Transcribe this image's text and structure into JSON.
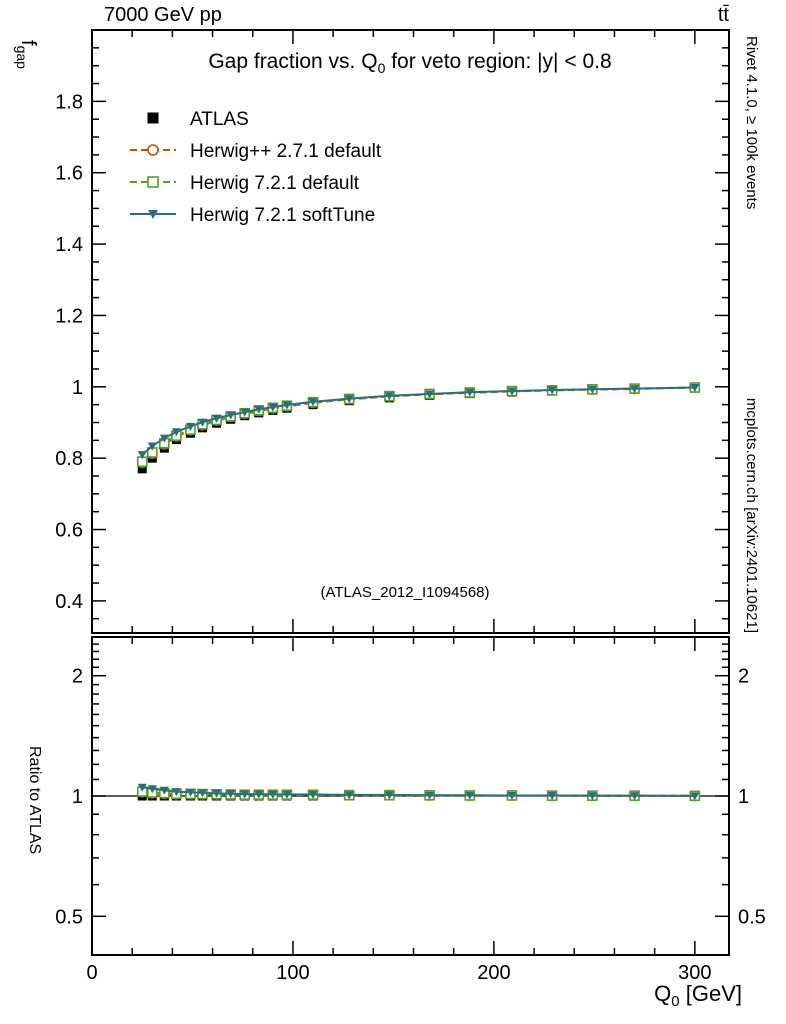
{
  "page": {
    "top_left_label": "7000 GeV pp",
    "top_right_label": "tt̄",
    "right_label_top": "Rivet 4.1.0, ≥ 100k events",
    "right_label_bottom": "mcplots.cern.ch [arXiv:2401.10621]",
    "watermark": "(ATLAS_2012_I1094568)"
  },
  "chart_data": {
    "type": "line",
    "title": {
      "pre": "Gap fraction vs. Q",
      "sub": "0",
      "post": " for veto region: |y| < 0.8"
    },
    "xlabel": {
      "pre": "Q",
      "sub": "0",
      "post": " [GeV]"
    },
    "ylabel": {
      "pre": "f",
      "sub": "gap"
    },
    "ratio_label": "Ratio to ATLAS",
    "legend_position": "top-left",
    "x_axis": {
      "lim": [
        0,
        317
      ],
      "major_ticks": [
        0,
        100,
        200,
        300
      ],
      "minor_step": 20
    },
    "y_axis_main": {
      "scale": "linear",
      "lim": [
        0.31,
        2.0
      ],
      "major_ticks": [
        0.4,
        0.6,
        0.8,
        1,
        1.2,
        1.4,
        1.6,
        1.8
      ],
      "minor_step": 0.05
    },
    "y_axis_ratio": {
      "scale": "log",
      "lim": [
        0.4,
        2.5
      ],
      "major_ticks": [
        0.5,
        1,
        2
      ],
      "minor_ticks": [
        0.4,
        0.6,
        0.7,
        0.8,
        0.9,
        1.1,
        1.2,
        1.3,
        1.4,
        1.5,
        1.6,
        1.7,
        1.8,
        1.9,
        2.1,
        2.2,
        2.3,
        2.4
      ]
    },
    "x": [
      25,
      30,
      36,
      42,
      49,
      55,
      62,
      69,
      76,
      83,
      90,
      97,
      110,
      128,
      148,
      168,
      188,
      209,
      229,
      249,
      270,
      300
    ],
    "series": [
      {
        "label": "ATLAS",
        "kind": "data",
        "color": "#000000",
        "marker": "square-filled",
        "line": "none",
        "values": [
          0.77,
          0.8,
          0.828,
          0.852,
          0.87,
          0.885,
          0.898,
          0.909,
          0.919,
          0.927,
          0.934,
          0.94,
          0.95,
          0.961,
          0.969,
          0.976,
          0.981,
          0.985,
          0.988,
          0.991,
          0.993,
          0.997
        ],
        "errors": [
          0.01,
          0.009,
          0.008,
          0.008,
          0.007,
          0.007,
          0.006,
          0.006,
          0.005,
          0.005,
          0.005,
          0.004,
          0.004,
          0.004,
          0.003,
          0.003,
          0.003,
          0.002,
          0.002,
          0.002,
          0.002,
          0.001
        ]
      },
      {
        "label": "Herwig++ 2.7.1 default",
        "kind": "mc",
        "color": "#bb5500",
        "marker": "circle-open",
        "line": "dashed",
        "values": [
          0.786,
          0.812,
          0.838,
          0.86,
          0.878,
          0.892,
          0.905,
          0.915,
          0.924,
          0.932,
          0.939,
          0.945,
          0.955,
          0.965,
          0.973,
          0.979,
          0.983,
          0.987,
          0.99,
          0.992,
          0.994,
          0.998
        ]
      },
      {
        "label": "Herwig 7.2.1 default",
        "kind": "mc",
        "color": "#55a021",
        "marker": "square-open",
        "line": "dashed",
        "values": [
          0.79,
          0.816,
          0.842,
          0.863,
          0.88,
          0.895,
          0.907,
          0.917,
          0.926,
          0.934,
          0.941,
          0.947,
          0.957,
          0.966,
          0.974,
          0.98,
          0.984,
          0.988,
          0.99,
          0.993,
          0.995,
          0.998
        ]
      },
      {
        "label": "Herwig 7.2.1 softTune",
        "kind": "mc",
        "color": "#2d6d7c",
        "marker": "triangle-down-filled",
        "line": "solid",
        "values": [
          0.81,
          0.834,
          0.856,
          0.874,
          0.889,
          0.901,
          0.912,
          0.921,
          0.929,
          0.937,
          0.943,
          0.949,
          0.958,
          0.967,
          0.975,
          0.98,
          0.985,
          0.988,
          0.991,
          0.993,
          0.995,
          0.998
        ]
      }
    ]
  }
}
